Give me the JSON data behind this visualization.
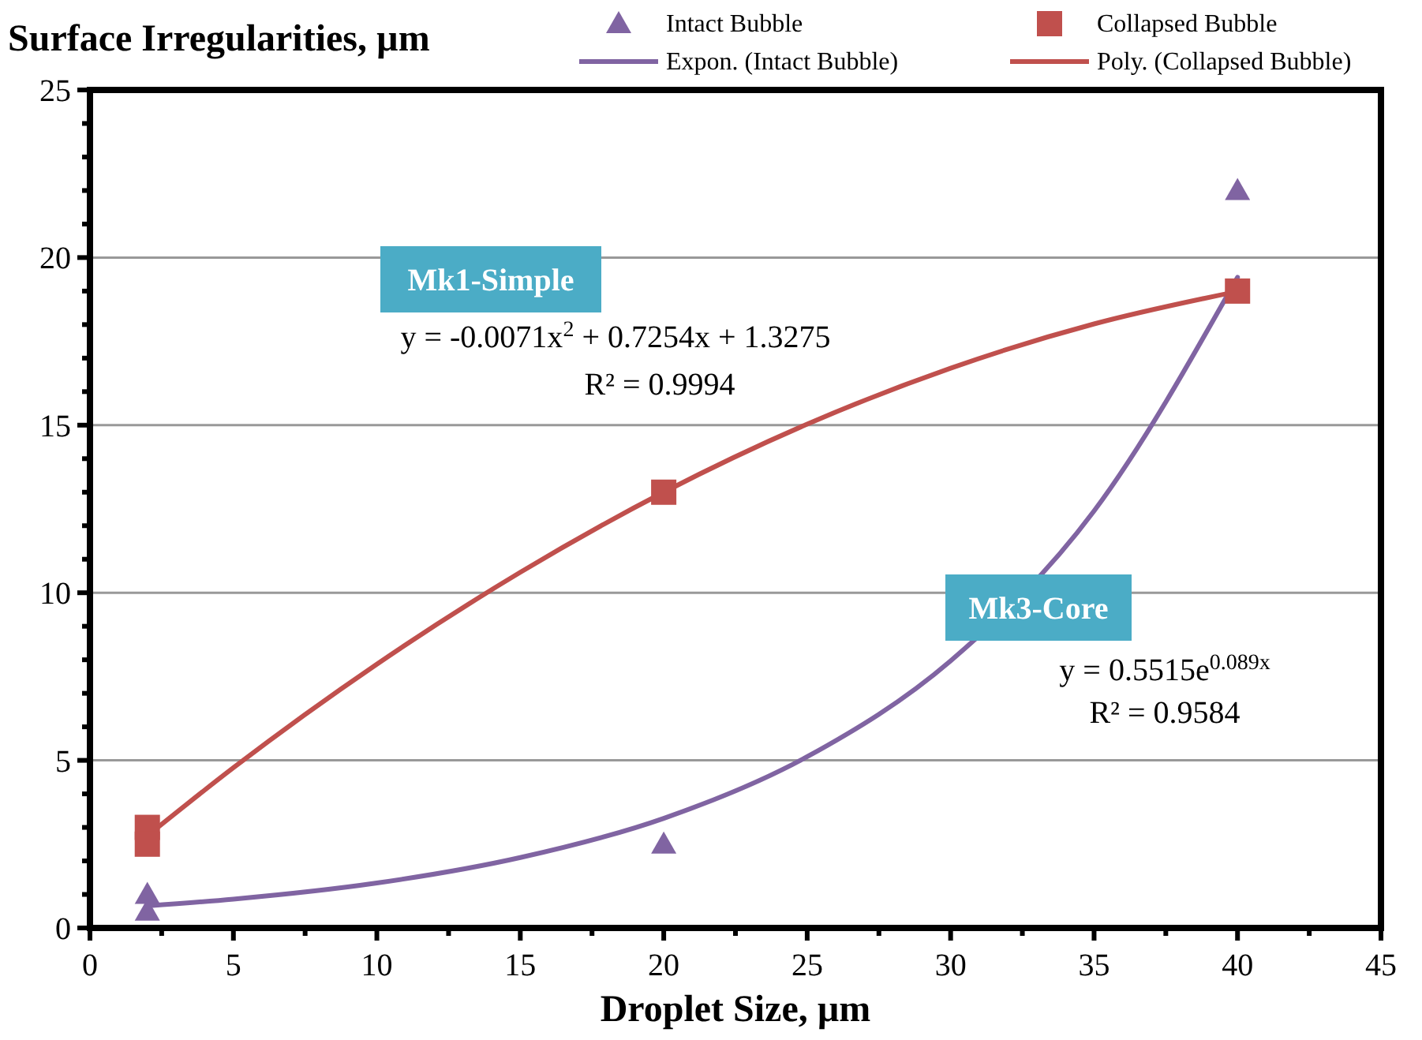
{
  "chart_data": {
    "type": "scatter",
    "ylabel": "Surface Irregularities, µm",
    "xlabel": "Droplet Size, µm",
    "xlim": [
      0,
      45
    ],
    "xticks": [
      0,
      5,
      10,
      15,
      20,
      25,
      30,
      35,
      40,
      45
    ],
    "ylim": [
      0,
      25
    ],
    "yticks": [
      0,
      5,
      10,
      15,
      20,
      25
    ],
    "grid": "y",
    "legend": "top right",
    "series": [
      {
        "name": "Intact Bubble",
        "type": "scatter",
        "marker": "triangle",
        "color": "#8064a2",
        "x": [
          2,
          2,
          20,
          40
        ],
        "values": [
          1,
          0.5,
          2.5,
          22
        ]
      },
      {
        "name": "Collapsed Bubble",
        "type": "scatter",
        "marker": "square",
        "color": "#c0504d",
        "x": [
          2,
          2,
          20,
          40
        ],
        "values": [
          3,
          2.5,
          13,
          19
        ]
      },
      {
        "name": "Expon. (Intact Bubble)",
        "type": "line",
        "marker": "none",
        "color": "#8064a2",
        "x": [
          2,
          5,
          10,
          15,
          20,
          25,
          30,
          35,
          40
        ],
        "values": [
          0.66,
          0.86,
          1.34,
          2.1,
          3.27,
          5.11,
          7.97,
          12.44,
          19.41
        ]
      },
      {
        "name": "Poly. (Collapsed Bubble)",
        "type": "line",
        "marker": "none",
        "color": "#c0504d",
        "x": [
          2,
          5,
          10,
          15,
          20,
          25,
          30,
          35,
          40
        ],
        "values": [
          2.75,
          4.78,
          7.87,
          10.61,
          13,
          15.03,
          16.7,
          18.02,
          18.99
        ]
      }
    ],
    "annotations": [
      "Mk1-Simple",
      "y = -0.0071x$^{2}$ + 0.7254x + 1.3275",
      "R² = 0.9994",
      "Mk3-Core",
      "y = 0.5515e$^{0.089x}$",
      "R² = 0.9584"
    ]
  }
}
